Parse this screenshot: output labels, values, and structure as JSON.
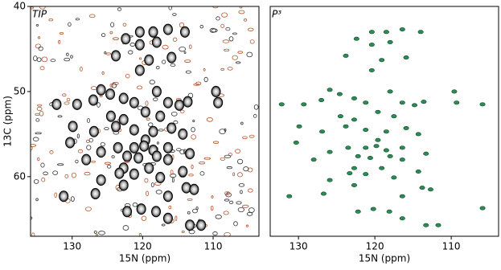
{
  "chart_data": [
    {
      "type": "scatter",
      "title": "TIP",
      "xlabel": "15N (ppm)",
      "ylabel": "13C (ppm)",
      "color": "#000000",
      "xlim": [
        135.9,
        103.5
      ],
      "ylim": [
        67,
        40
      ],
      "xticks": [
        130,
        120,
        110
      ],
      "yticks": [
        40,
        50,
        60
      ],
      "x": [
        120.4,
        118.5,
        116.4,
        114.0,
        122.4,
        120.4,
        118.0,
        123.8,
        119.1,
        115.9,
        120.4,
        125.9,
        132.2,
        129.3,
        127.0,
        124.6,
        122.7,
        121.2,
        118.0,
        116.4,
        114.8,
        113.6,
        109.6,
        109.3,
        124.5,
        122.7,
        119.6,
        117.5,
        129.9,
        126.9,
        123.8,
        121.2,
        118.5,
        115.9,
        119.6,
        114.3,
        130.3,
        123.5,
        121.2,
        119.8,
        118.5,
        116.4,
        125.9,
        122.2,
        120.6,
        118.0,
        113.3,
        128.0,
        122.7,
        119.1,
        116.4,
        114.3,
        125.9,
        123.3,
        121.2,
        117.5,
        131.2,
        126.7,
        122.7,
        116.4,
        113.8,
        112.7,
        122.2,
        120.2,
        118.1,
        113.3,
        111.7,
        116.4
      ],
      "values": [
        43.0,
        43.0,
        42.7,
        43.0,
        43.8,
        44.5,
        44.2,
        45.8,
        46.3,
        46.0,
        47.5,
        49.8,
        51.5,
        51.5,
        51.0,
        50.3,
        50.8,
        51.3,
        50.0,
        51.3,
        51.6,
        51.2,
        50.0,
        51.3,
        52.9,
        53.3,
        52.4,
        52.9,
        54.1,
        54.7,
        54.1,
        54.5,
        54.7,
        54.3,
        55.7,
        55.0,
        56.0,
        56.6,
        56.6,
        56.4,
        56.9,
        56.6,
        57.1,
        57.6,
        57.8,
        57.6,
        57.3,
        58.0,
        59.0,
        59.0,
        58.0,
        59.4,
        60.4,
        59.6,
        59.7,
        60.1,
        62.3,
        62.0,
        61.0,
        62.3,
        61.3,
        61.5,
        64.1,
        63.8,
        64.1,
        65.7,
        65.7,
        64.9
      ]
    },
    {
      "type": "scatter",
      "title": "P³",
      "xlabel": "15N (ppm)",
      "color": "#2e8b57",
      "xlim": [
        133.7,
        103.8
      ],
      "ylim": [
        67,
        40
      ],
      "xticks": [
        130,
        120,
        110
      ],
      "x": [
        120.4,
        118.5,
        116.4,
        114.0,
        122.4,
        120.4,
        118.0,
        123.8,
        119.1,
        115.9,
        120.4,
        125.9,
        132.2,
        129.3,
        127.0,
        124.6,
        122.7,
        121.2,
        118.0,
        116.4,
        114.8,
        113.6,
        109.6,
        109.3,
        105.9,
        124.5,
        122.7,
        119.6,
        117.5,
        129.9,
        126.9,
        123.8,
        121.2,
        118.5,
        115.9,
        119.6,
        114.3,
        130.3,
        123.5,
        121.2,
        119.8,
        118.5,
        116.4,
        125.9,
        122.2,
        120.6,
        118.0,
        113.3,
        128.0,
        122.7,
        119.1,
        116.4,
        114.3,
        125.9,
        123.3,
        121.2,
        117.5,
        131.2,
        126.7,
        122.7,
        116.4,
        113.8,
        112.7,
        122.2,
        120.2,
        118.1,
        113.3,
        111.7,
        105.9,
        116.4
      ],
      "values": [
        43.0,
        43.0,
        42.7,
        43.0,
        43.8,
        44.5,
        44.2,
        45.8,
        46.3,
        46.0,
        47.5,
        49.8,
        51.5,
        51.5,
        51.0,
        50.3,
        50.8,
        51.3,
        50.0,
        51.3,
        51.6,
        51.2,
        50.0,
        51.3,
        51.5,
        52.9,
        53.3,
        52.4,
        52.9,
        54.1,
        54.7,
        54.1,
        54.5,
        54.7,
        54.3,
        55.7,
        55.0,
        56.0,
        56.6,
        56.6,
        56.4,
        56.9,
        56.6,
        57.1,
        57.6,
        57.8,
        57.6,
        57.3,
        58.0,
        59.0,
        59.0,
        58.0,
        59.4,
        60.4,
        59.6,
        59.7,
        60.1,
        62.3,
        62.0,
        61.0,
        62.3,
        61.3,
        61.5,
        64.1,
        63.8,
        64.1,
        65.7,
        65.7,
        63.7,
        64.9
      ]
    }
  ]
}
